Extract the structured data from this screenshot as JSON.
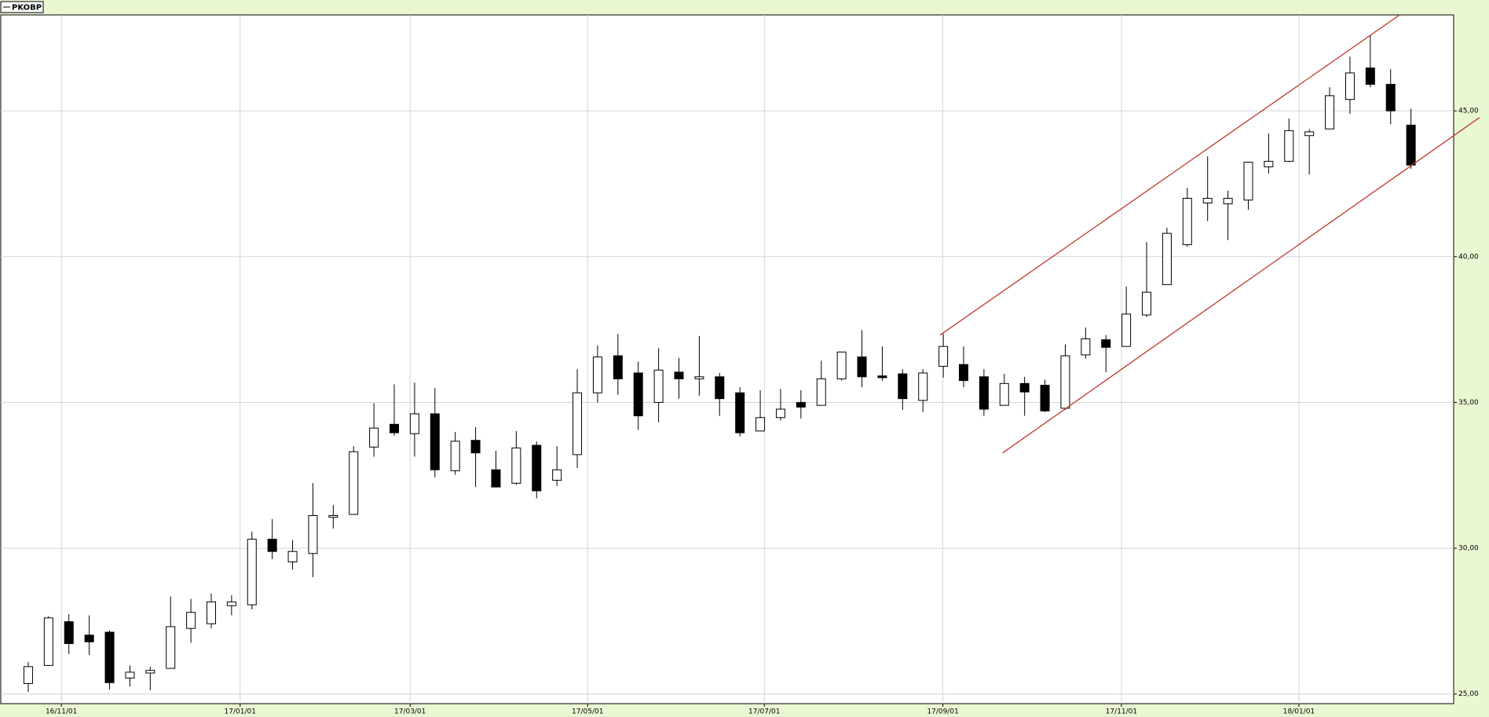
{
  "chart_data": {
    "type": "candlestick",
    "name": "PKOBP",
    "x": [
      0,
      1,
      2,
      3,
      4,
      5,
      6,
      7,
      8,
      9,
      10,
      11,
      12,
      13,
      14,
      15,
      16,
      17,
      18,
      19,
      20,
      21,
      22,
      23,
      24,
      25,
      26,
      27,
      28,
      29,
      30,
      31,
      32,
      33,
      34,
      35,
      36,
      37,
      38,
      39,
      40,
      41,
      42,
      43,
      44,
      45,
      46,
      47,
      48,
      49,
      50,
      51,
      52,
      53,
      54,
      55,
      56,
      57,
      58,
      59,
      60,
      61,
      62,
      63,
      64,
      65,
      66,
      67,
      68
    ],
    "open": [
      25.36,
      25.98,
      27.48,
      27.02,
      27.12,
      25.55,
      25.72,
      25.88,
      27.25,
      27.41,
      28.03,
      28.06,
      30.31,
      29.53,
      29.82,
      31.06,
      31.16,
      33.47,
      34.25,
      33.93,
      34.61,
      32.66,
      33.7,
      32.69,
      32.23,
      33.53,
      32.33,
      33.21,
      35.33,
      36.6,
      36.01,
      35.0,
      36.04,
      35.81,
      35.88,
      35.33,
      34.02,
      34.48,
      35.0,
      34.9,
      35.81,
      36.56,
      35.91,
      35.98,
      35.07,
      36.24,
      36.3,
      35.88,
      34.9,
      35.65,
      35.59,
      34.8,
      36.63,
      37.15,
      36.92,
      38.0,
      39.04,
      40.41,
      41.84,
      41.81,
      41.94,
      43.08,
      43.27,
      44.15,
      44.38,
      45.39,
      46.47,
      45.91,
      44.51
    ],
    "high": [
      26.1,
      27.67,
      27.74,
      27.7,
      27.18,
      25.98,
      25.94,
      28.35,
      28.26,
      28.45,
      28.39,
      30.57,
      31.0,
      30.28,
      32.23,
      31.48,
      33.5,
      34.97,
      35.62,
      35.68,
      35.49,
      33.99,
      34.15,
      33.34,
      34.02,
      33.66,
      33.5,
      36.14,
      36.95,
      37.35,
      36.4,
      36.86,
      36.53,
      37.28,
      36.01,
      35.52,
      35.42,
      35.46,
      35.42,
      36.43,
      36.73,
      37.48,
      36.92,
      36.14,
      36.14,
      37.35,
      36.92,
      36.14,
      35.98,
      35.88,
      35.78,
      36.99,
      37.57,
      37.31,
      38.97,
      40.5,
      40.99,
      42.36,
      43.44,
      42.26,
      43.24,
      44.22,
      44.74,
      44.38,
      45.81,
      46.86,
      47.61,
      46.43,
      45.07
    ],
    "low": [
      25.07,
      25.98,
      26.37,
      26.34,
      25.16,
      25.26,
      25.13,
      25.88,
      26.76,
      27.25,
      27.7,
      27.9,
      29.63,
      29.27,
      29.01,
      30.67,
      31.16,
      33.14,
      33.86,
      33.14,
      32.43,
      32.52,
      32.1,
      32.1,
      32.17,
      31.71,
      32.13,
      32.75,
      35.0,
      35.26,
      34.06,
      34.32,
      35.13,
      35.23,
      34.54,
      33.83,
      34.02,
      34.38,
      34.45,
      34.9,
      35.75,
      35.52,
      35.75,
      34.74,
      34.67,
      35.85,
      35.52,
      34.54,
      34.9,
      34.54,
      34.67,
      34.74,
      36.5,
      36.04,
      36.92,
      37.93,
      39.04,
      40.34,
      41.22,
      40.57,
      41.61,
      42.85,
      43.24,
      42.82,
      44.38,
      44.9,
      45.81,
      44.54,
      43.01
    ],
    "close": [
      25.94,
      27.61,
      26.73,
      26.79,
      25.39,
      25.75,
      25.81,
      27.31,
      27.8,
      28.16,
      28.16,
      30.31,
      29.89,
      29.89,
      31.12,
      31.12,
      33.31,
      34.12,
      33.96,
      34.61,
      32.69,
      33.67,
      33.27,
      32.1,
      33.44,
      31.97,
      32.69,
      35.33,
      36.56,
      35.81,
      34.54,
      36.11,
      35.81,
      35.88,
      35.13,
      33.96,
      34.48,
      34.77,
      34.84,
      35.81,
      36.73,
      35.88,
      35.85,
      35.13,
      36.01,
      36.92,
      35.75,
      34.77,
      35.65,
      35.36,
      34.71,
      36.6,
      37.18,
      36.89,
      38.03,
      38.78,
      40.8,
      42.0,
      42.0,
      42.0,
      43.24,
      43.27,
      44.32,
      44.28,
      45.52,
      46.3,
      45.91,
      45.0,
      43.14
    ],
    "up_color": "#ffffff",
    "down_color": "#000000",
    "edge_color": "#000000",
    "xlim": [
      -1.35,
      70.1
    ],
    "xticks": [
      {
        "value": 1.63,
        "label": "16/11/01"
      },
      {
        "value": 10.42,
        "label": "17/01/01"
      },
      {
        "value": 18.78,
        "label": "17/03/01"
      },
      {
        "value": 27.51,
        "label": "17/05/01"
      },
      {
        "value": 36.2,
        "label": "17/07/01"
      },
      {
        "value": 44.98,
        "label": "17/09/01"
      },
      {
        "value": 53.76,
        "label": "17/11/01"
      },
      {
        "value": 62.49,
        "label": "18/01/01"
      }
    ],
    "ylim": [
      24.67,
      48.29
    ],
    "yticks": [
      {
        "value": 25,
        "label": "25,00"
      },
      {
        "value": 30,
        "label": "30,00"
      },
      {
        "value": 35,
        "label": "35,00"
      },
      {
        "value": 40,
        "label": "40,00"
      },
      {
        "value": 45,
        "label": "45,00"
      }
    ],
    "grid": true,
    "trendlines": [
      {
        "x": [
          44.84,
          67.44
        ],
        "y": [
          37.31,
          48.29
        ],
        "color": "#c0392b"
      },
      {
        "x": [
          47.92,
          71.37
        ],
        "y": [
          33.27,
          44.77
        ],
        "color": "#c0392b"
      }
    ]
  }
}
